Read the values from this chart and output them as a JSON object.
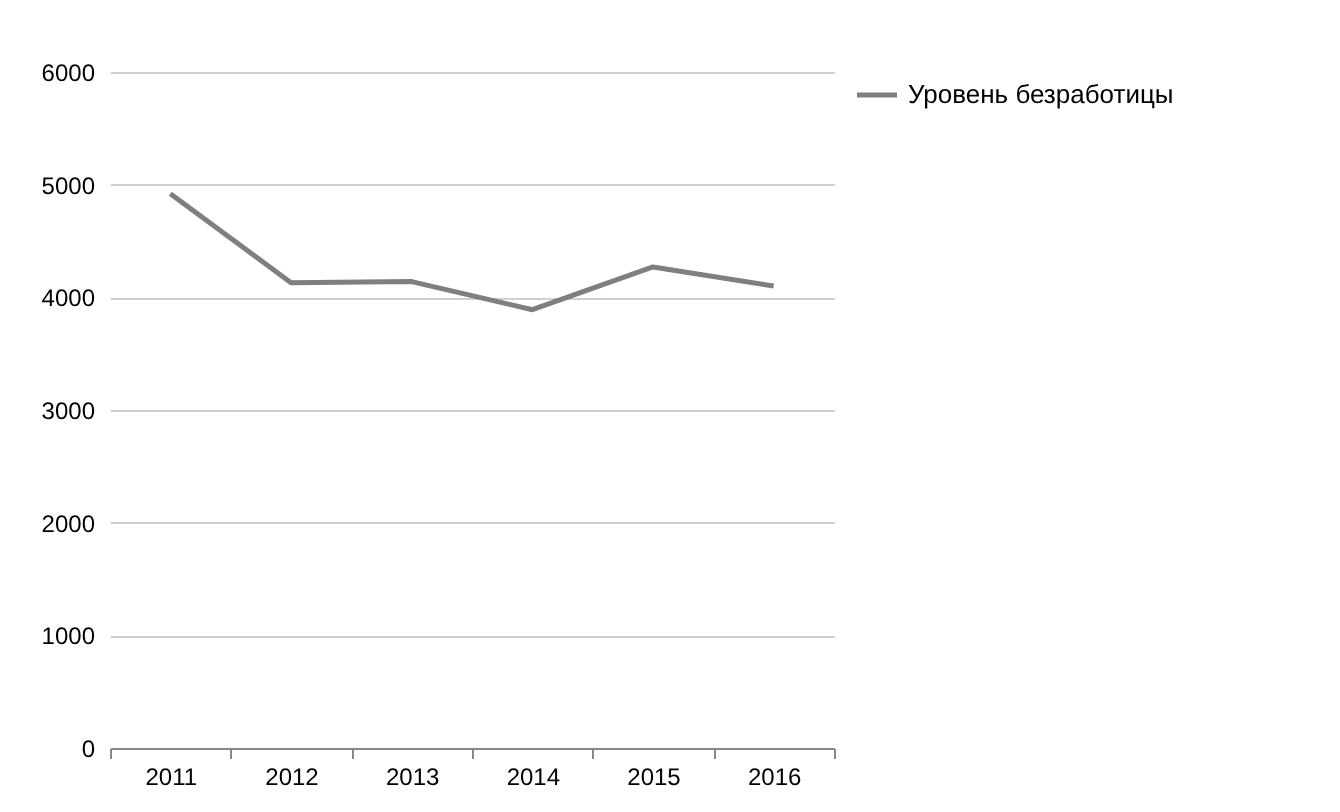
{
  "chart_data": {
    "type": "line",
    "categories": [
      "2011",
      "2012",
      "2013",
      "2014",
      "2015",
      "2016"
    ],
    "series": [
      {
        "name": "Уровень безработицы",
        "color": "#7f7f7f",
        "values": [
          4920,
          4130,
          4140,
          3890,
          4270,
          4100
        ]
      }
    ],
    "ylim": [
      0,
      6000
    ],
    "yticks": [
      0,
      1000,
      2000,
      3000,
      4000,
      5000,
      6000
    ],
    "grid": "y",
    "legend": "right",
    "marker": "none",
    "line_style": "solid"
  }
}
